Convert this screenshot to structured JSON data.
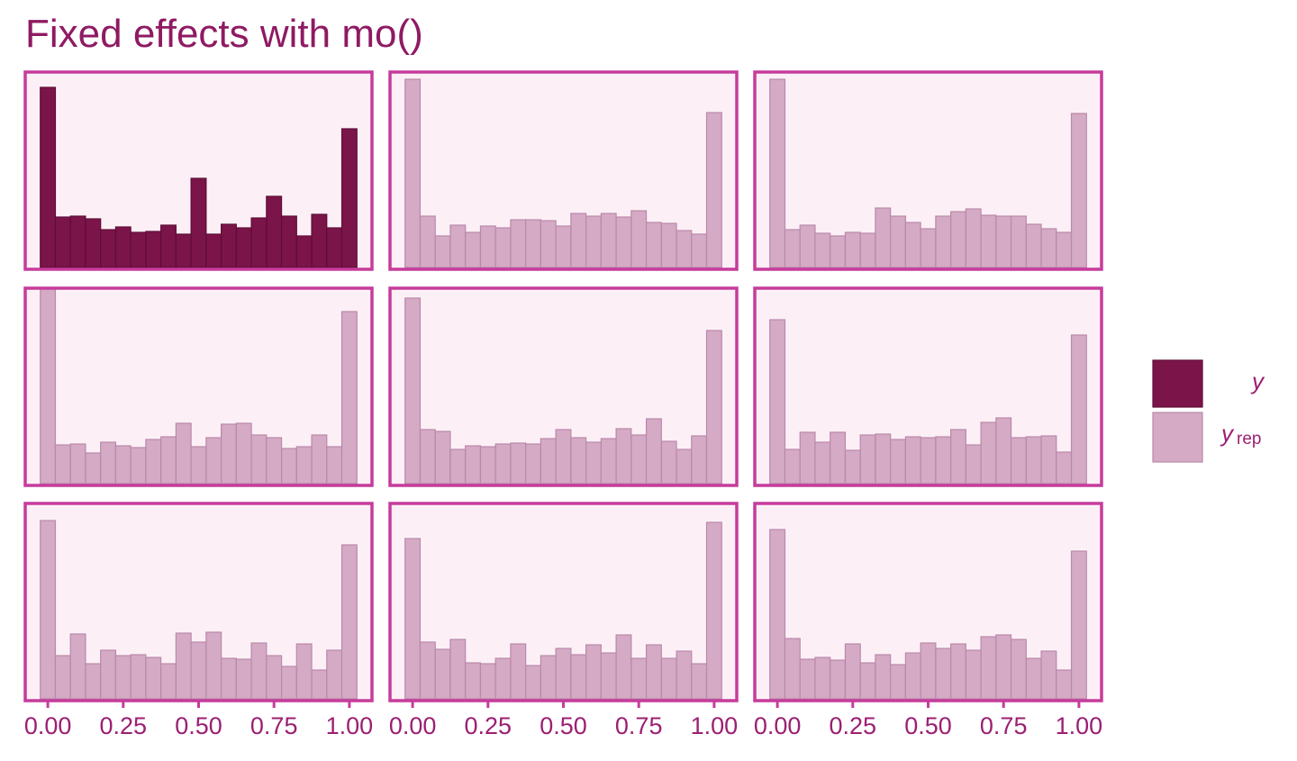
{
  "chart_data": {
    "type": "histogram",
    "title": "Fixed effects with mo()",
    "bins": [
      -0.025,
      0.025,
      0.075,
      0.125,
      0.175,
      0.225,
      0.275,
      0.325,
      0.375,
      0.425,
      0.475,
      0.525,
      0.575,
      0.625,
      0.675,
      0.725,
      0.775,
      0.825,
      0.875,
      0.925,
      0.975,
      1.025
    ],
    "xlim": [
      -0.075,
      1.075
    ],
    "xticks": [
      {
        "value": 0,
        "label": "0.00"
      },
      {
        "value": 0.25,
        "label": "0.25"
      },
      {
        "value": 0.5,
        "label": "0.50"
      },
      {
        "value": 0.75,
        "label": "0.75"
      },
      {
        "value": 1,
        "label": "1.00"
      }
    ],
    "ylim": [
      0,
      215
    ],
    "series": [
      {
        "name": "y",
        "color": "#7b1449",
        "edge": "#5e0d37"
      },
      {
        "name": "y",
        "subscript": "rep",
        "color": "#d4aac4",
        "edge": "#bb88aa"
      }
    ],
    "panels": [
      {
        "series": 0,
        "values": [
          200,
          56,
          57,
          54,
          42,
          45,
          39,
          40,
          47,
          37,
          99,
          37,
          48,
          44,
          55,
          79,
          57,
          35,
          59,
          44,
          154
        ]
      },
      {
        "series": 1,
        "values": [
          209,
          57,
          35,
          47,
          39,
          46,
          44,
          53,
          53,
          52,
          46,
          60,
          57,
          60,
          56,
          63,
          50,
          49,
          41,
          37,
          172
        ]
      },
      {
        "series": 1,
        "values": [
          209,
          42,
          47,
          38,
          35,
          39,
          38,
          66,
          57,
          50,
          43,
          57,
          62,
          65,
          58,
          57,
          57,
          48,
          43,
          39,
          171
        ]
      },
      {
        "series": 1,
        "values": [
          225,
          43,
          44,
          34,
          46,
          42,
          40,
          49,
          52,
          67,
          41,
          51,
          66,
          67,
          54,
          51,
          39,
          41,
          54,
          41,
          191
        ]
      },
      {
        "series": 1,
        "values": [
          206,
          60,
          58,
          38,
          42,
          41,
          44,
          45,
          44,
          50,
          60,
          51,
          46,
          50,
          61,
          54,
          72,
          47,
          38,
          53,
          170
        ]
      },
      {
        "series": 1,
        "values": [
          182,
          38,
          57,
          46,
          57,
          37,
          54,
          55,
          49,
          52,
          51,
          52,
          60,
          43,
          68,
          73,
          51,
          52,
          53,
          35,
          165
        ]
      },
      {
        "series": 1,
        "values": [
          198,
          48,
          72,
          39,
          54,
          48,
          49,
          46,
          39,
          73,
          63,
          74,
          45,
          44,
          62,
          48,
          36,
          61,
          32,
          54,
          171
        ]
      },
      {
        "series": 1,
        "values": [
          178,
          63,
          55,
          66,
          40,
          39,
          45,
          61,
          37,
          48,
          56,
          49,
          60,
          51,
          71,
          45,
          60,
          45,
          53,
          39,
          196
        ]
      },
      {
        "series": 1,
        "values": [
          188,
          67,
          44,
          46,
          43,
          61,
          40,
          49,
          38,
          51,
          62,
          56,
          61,
          54,
          69,
          71,
          66,
          45,
          53,
          32,
          164
        ]
      }
    ]
  }
}
